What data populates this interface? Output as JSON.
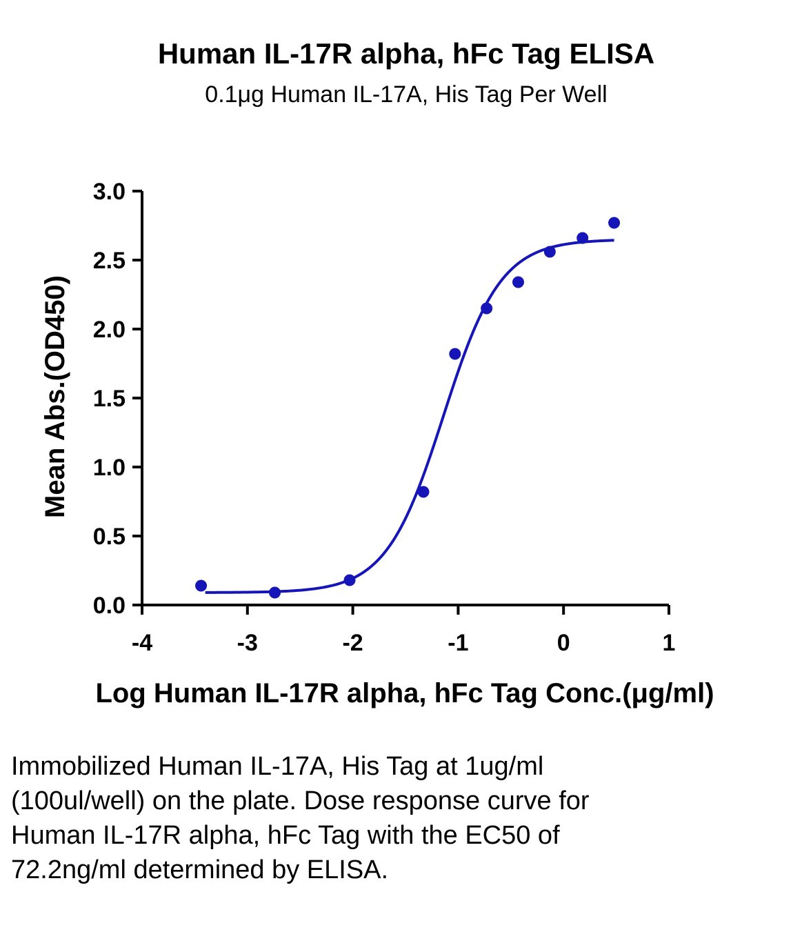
{
  "caption": "Immobilized Human IL-17A, His Tag at 1ug/ml (100ul/well) on the plate. Dose response curve for Human IL-17R alpha, hFc Tag with the EC50 of 72.2ng/ml determined by ELISA.",
  "colors": {
    "series": "#1515b8",
    "axis": "#000000"
  },
  "chart_data": {
    "type": "scatter",
    "title": "Human IL-17R alpha, hFc Tag ELISA",
    "subtitle": "0.1μg Human IL-17A, His Tag Per Well",
    "xlabel": "Log Human IL-17R alpha, hFc Tag Conc.(μg/ml)",
    "ylabel": "Mean Abs.(OD450)",
    "xlim": [
      -4,
      1
    ],
    "ylim": [
      0,
      3.0
    ],
    "xticks": [
      -4,
      -3,
      -2,
      -1,
      0,
      1
    ],
    "xtick_labels": [
      "-4",
      "-3",
      "-2",
      "-1",
      "0",
      "1"
    ],
    "yticks": [
      0,
      0.5,
      1.0,
      1.5,
      2.0,
      2.5,
      3.0
    ],
    "ytick_labels": [
      "0.0",
      "0.5",
      "1.0",
      "1.5",
      "2.0",
      "2.5",
      "3.0"
    ],
    "grid": false,
    "legend": "none",
    "points": {
      "x": [
        -3.44,
        -2.74,
        -2.03,
        -1.33,
        -1.03,
        -0.73,
        -0.43,
        -0.13,
        0.18,
        0.48
      ],
      "y": [
        0.14,
        0.09,
        0.18,
        0.82,
        1.82,
        2.15,
        2.34,
        2.56,
        2.66,
        2.77
      ]
    },
    "fit_curve": {
      "model": "4PL",
      "bottom": 0.09,
      "top": 2.65,
      "logEC50": -1.14,
      "hill_slope": 1.6,
      "x_range": [
        -3.4,
        0.48
      ]
    }
  }
}
